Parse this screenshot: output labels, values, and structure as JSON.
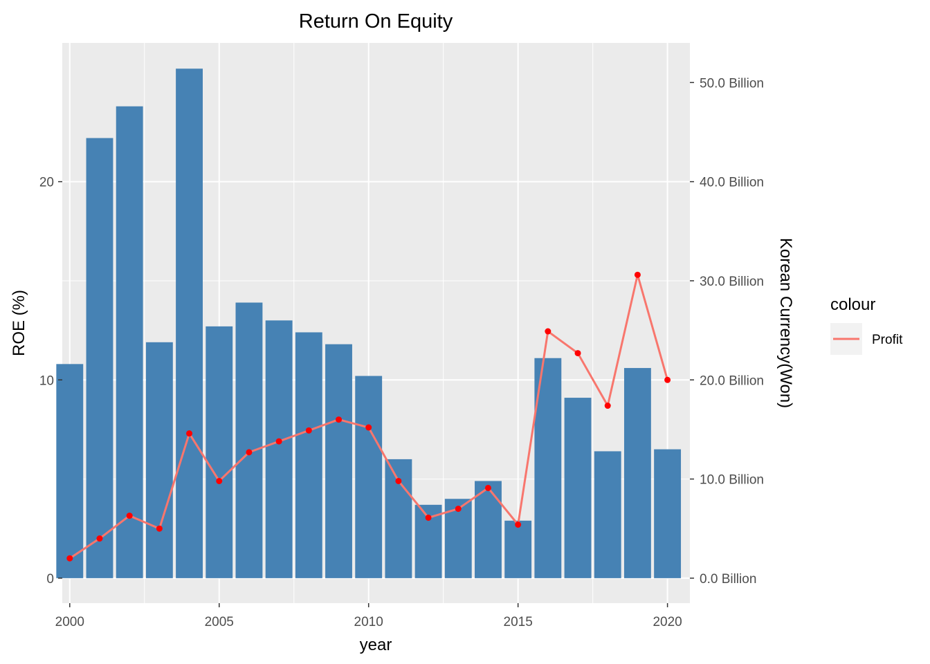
{
  "chart_data": {
    "type": "bar",
    "title": "Return On Equity",
    "xlabel": "year",
    "ylabel": "ROE (%)",
    "y2label": "Korean Currency(Won)",
    "x": [
      2000,
      2001,
      2002,
      2003,
      2004,
      2005,
      2006,
      2007,
      2008,
      2009,
      2010,
      2011,
      2012,
      2013,
      2014,
      2015,
      2016,
      2017,
      2018,
      2019,
      2020
    ],
    "series": [
      {
        "type": "bar",
        "axis": "left",
        "color": "#4682B4",
        "values": [
          10.8,
          22.2,
          23.8,
          11.9,
          25.7,
          12.7,
          13.9,
          13.0,
          12.4,
          11.8,
          10.2,
          6.0,
          3.7,
          4.0,
          4.9,
          2.9,
          11.1,
          9.1,
          6.4,
          10.6,
          6.5
        ]
      },
      {
        "type": "line",
        "axis": "right",
        "name": "Profit",
        "color": "#F8766D",
        "point_color": "#FF0000",
        "values": [
          2.0,
          4.0,
          6.3,
          5.0,
          14.6,
          9.8,
          12.7,
          13.8,
          14.9,
          16.0,
          15.2,
          9.8,
          6.1,
          7.0,
          9.1,
          5.4,
          24.9,
          22.7,
          17.4,
          30.6,
          20.0
        ]
      }
    ],
    "xlim": [
      1999.75,
      2020.75
    ],
    "ylim": [
      -1.26,
      27.0
    ],
    "x_ticks": [
      2000,
      2005,
      2010,
      2015,
      2020
    ],
    "y_ticks": [
      0,
      10,
      20
    ],
    "y2_ticks": [
      {
        "value": 0,
        "label": "0.0 Billion"
      },
      {
        "value": 10,
        "label": "10.0 Billion"
      },
      {
        "value": 20,
        "label": "20.0 Billion"
      },
      {
        "value": 30,
        "label": "30.0 Billion"
      },
      {
        "value": 40,
        "label": "40.0 Billion"
      },
      {
        "value": 50,
        "label": "50.0 Billion"
      }
    ],
    "y2_per_y": 2,
    "grid": true,
    "legend": {
      "title": "colour",
      "position": "right",
      "entries": [
        "Profit"
      ]
    },
    "colors": {
      "panel": "#EBEBEB",
      "grid": "#FFFFFF"
    }
  }
}
